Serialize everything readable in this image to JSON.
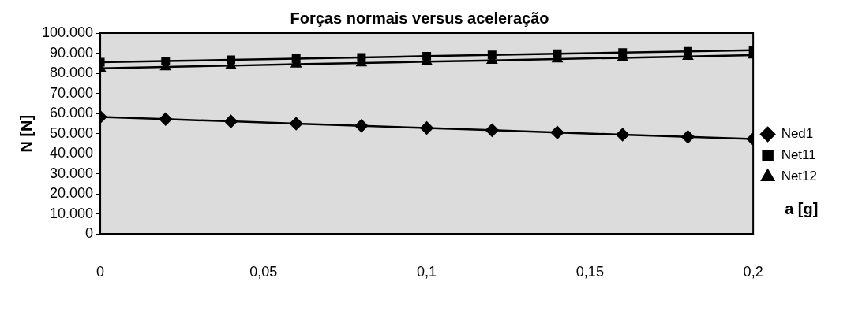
{
  "chart_data": {
    "type": "line",
    "title": "Forças normais versus aceleração",
    "xlabel": "a [g]",
    "ylabel": "N [N]",
    "x": [
      0,
      0.02,
      0.04,
      0.06,
      0.08,
      0.1,
      0.12,
      0.14,
      0.16,
      0.18,
      0.2
    ],
    "series": [
      {
        "name": "Ned1",
        "color": "#000000",
        "marker": "diamond",
        "values": [
          58300,
          57200,
          56100,
          55000,
          53900,
          52800,
          51700,
          50600,
          49500,
          48400,
          47300
        ]
      },
      {
        "name": "Net11",
        "color": "#000000",
        "marker": "square",
        "values": [
          85500,
          86100,
          86700,
          87300,
          87900,
          88500,
          89100,
          89700,
          90300,
          90900,
          91500
        ]
      },
      {
        "name": "Net12",
        "color": "#000000",
        "marker": "triangle",
        "values": [
          82500,
          83200,
          83800,
          84500,
          85100,
          85800,
          86400,
          87100,
          87700,
          88400,
          89000
        ]
      }
    ],
    "xlim": [
      0,
      0.2
    ],
    "xticks": [
      0,
      {
        "value": 0.05,
        "label": "0,05"
      },
      {
        "value": 0.1,
        "label": "0,1"
      },
      {
        "value": 0.15,
        "label": "0,15"
      },
      {
        "value": 0.2,
        "label": "0,2"
      }
    ],
    "ylim": [
      0,
      100000
    ],
    "yticks": [
      0,
      {
        "value": 10000,
        "label": "10.000"
      },
      {
        "value": 20000,
        "label": "20.000"
      },
      {
        "value": 30000,
        "label": "30.000"
      },
      {
        "value": 40000,
        "label": "40.000"
      },
      {
        "value": 50000,
        "label": "50.000"
      },
      {
        "value": 60000,
        "label": "60.000"
      },
      {
        "value": 70000,
        "label": "70.000"
      },
      {
        "value": 80000,
        "label": "80.000"
      },
      {
        "value": 90000,
        "label": "90.000"
      },
      {
        "value": 100000,
        "label": "100.000"
      }
    ],
    "grid": false,
    "legend": "right",
    "line_style": "solid"
  }
}
